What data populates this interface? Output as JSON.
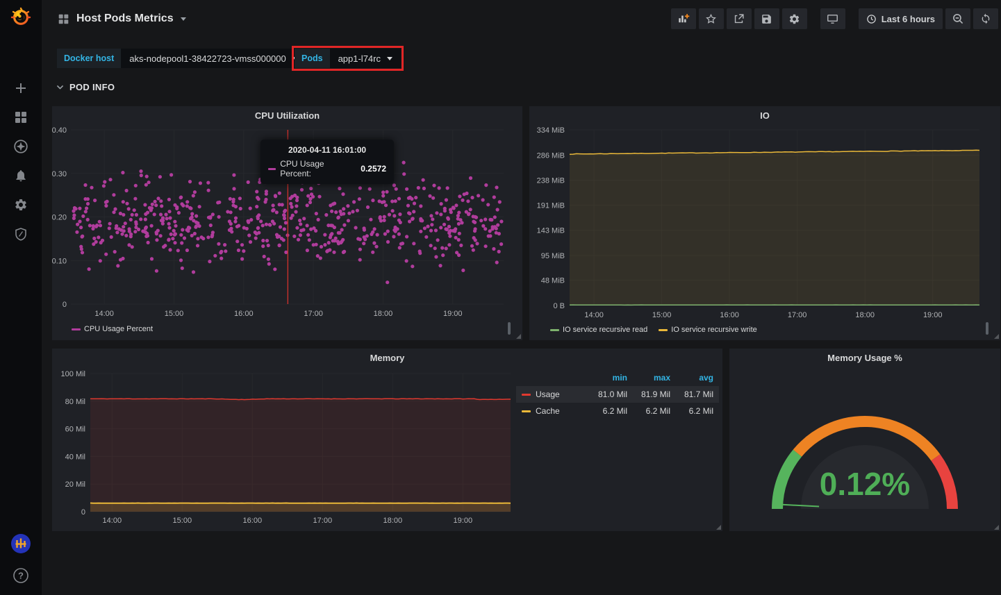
{
  "topbar": {
    "title": "Host Pods Metrics",
    "time_range_label": "Last 6 hours",
    "buttons": [
      "add-panel",
      "mark-as-favorite",
      "share-dashboard",
      "save-dashboard",
      "dashboard-settings",
      "cycle-view-mode",
      "time-range-picker",
      "zoom-out-time-range",
      "refresh-dashboard"
    ]
  },
  "sidebar": {
    "items": [
      "create",
      "dashboards",
      "explore",
      "alerting",
      "configuration",
      "server-admin"
    ],
    "help_glyph": "?"
  },
  "variables": {
    "docker_host": {
      "label": "Docker host",
      "value": "aks-nodepool1-38422723-vmss000000"
    },
    "pods": {
      "label": "Pods",
      "value": "app1-l74rc",
      "highlighted": true,
      "highlight_color": "#e12626"
    }
  },
  "row_header": {
    "label": "POD INFO"
  },
  "chart_data": [
    {
      "type": "scatter",
      "title": "CPU Utilization",
      "series": [
        {
          "name": "CPU Usage Percent",
          "color": "#b03c9c"
        }
      ],
      "ylim": [
        0,
        0.4
      ],
      "y_tick_values": [
        0,
        0.1,
        0.2,
        0.3,
        0.4
      ],
      "y_ticks": [
        "0",
        "0.10",
        "0.20",
        "0.30",
        "0.40"
      ],
      "x_tick_hours": [
        14,
        15,
        16,
        17,
        18,
        19
      ],
      "x_ticks": [
        "14:00",
        "15:00",
        "16:00",
        "17:00",
        "18:00",
        "19:00"
      ],
      "x_range": [
        "13:31",
        "19:44"
      ],
      "points_estimate": {
        "count": 620,
        "mean": 0.19,
        "sd": 0.048,
        "min": 0.045,
        "max": 0.325,
        "seed": 42
      },
      "crosshair": {
        "time": "16:38",
        "color": "#c9302c"
      },
      "tooltip": {
        "time": "2020-04-11 16:01:00",
        "series_label": "CPU Usage Percent:",
        "value": "0.2572"
      }
    },
    {
      "type": "line",
      "title": "IO",
      "ylim_mib": [
        0,
        334
      ],
      "y_tick_values_mib": [
        0,
        48,
        95,
        143,
        191,
        238,
        286,
        334
      ],
      "y_ticks": [
        "0 B",
        "48 MiB",
        "95 MiB",
        "143 MiB",
        "191 MiB",
        "238 MiB",
        "286 MiB",
        "334 MiB"
      ],
      "x_tick_hours": [
        14,
        15,
        16,
        17,
        18,
        19
      ],
      "x_ticks": [
        "14:00",
        "15:00",
        "16:00",
        "17:00",
        "18:00",
        "19:00"
      ],
      "series": [
        {
          "name": "IO service recursive read",
          "color": "#7eb26d",
          "value_mib_start": 1,
          "value_mib_end": 1
        },
        {
          "name": "IO service recursive write",
          "color": "#eab839",
          "value_mib_start": 288,
          "value_mib_end": 295,
          "fill": true
        }
      ]
    },
    {
      "type": "area",
      "title": "Memory",
      "ylim": [
        0,
        100
      ],
      "y_tick_values": [
        0,
        20,
        40,
        60,
        80,
        100
      ],
      "y_ticks": [
        "0",
        "20 Mil",
        "40 Mil",
        "60 Mil",
        "80 Mil",
        "100 Mil"
      ],
      "x_tick_hours": [
        14,
        15,
        16,
        17,
        18,
        19
      ],
      "x_ticks": [
        "14:00",
        "15:00",
        "16:00",
        "17:00",
        "18:00",
        "19:00"
      ],
      "legend_table_headers": [
        "min",
        "max",
        "avg"
      ],
      "series": [
        {
          "name": "Usage",
          "color": "#e0392f",
          "approx_mil": 81.7,
          "min": "81.0 Mil",
          "max": "81.9 Mil",
          "avg": "81.7 Mil"
        },
        {
          "name": "Cache",
          "color": "#eab839",
          "approx_mil": 6.2,
          "min": "6.2 Mil",
          "max": "6.2 Mil",
          "avg": "6.2 Mil"
        }
      ]
    },
    {
      "type": "gauge",
      "title": "Memory Usage %",
      "value": "0.12%",
      "value_color": "#4fae57",
      "segments": [
        {
          "color": "#56b45d",
          "from": 0.0,
          "to": 0.22
        },
        {
          "color": "#ee8323",
          "from": 0.22,
          "to": 0.8
        },
        {
          "color": "#e8433f",
          "from": 0.8,
          "to": 1.0
        }
      ]
    }
  ]
}
